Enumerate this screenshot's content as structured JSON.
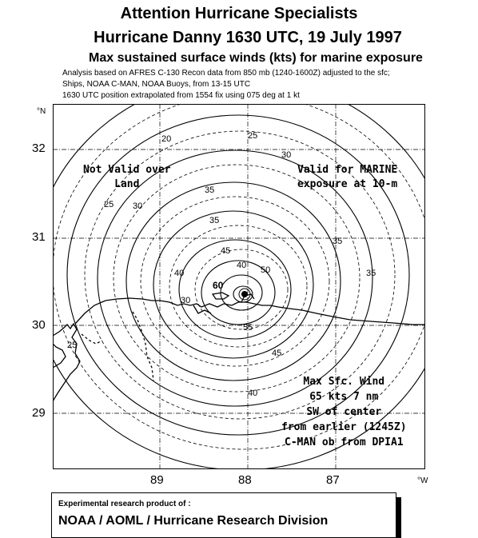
{
  "header": {
    "title": "Attention Hurricane Specialists",
    "storm_time": "Hurricane Danny  1630 UTC, 19 July 1997",
    "subtitle": "Max sustained surface winds (kts) for marine exposure",
    "note1": "Analysis based on  AFRES C-130 Recon data from 850  mb (1240-1600Z) adjusted to the sfc;",
    "note2": "Ships, NOAA C-MAN, NOAA Buoys, from  13-15  UTC",
    "note3": "1630 UTC position extrapolated from  1554 fix using 075 deg at 1 kt"
  },
  "axes": {
    "north_unit": "°N",
    "west_unit": "°W",
    "lat_ticks": [
      "32",
      "31",
      "30",
      "29"
    ],
    "lon_ticks": [
      "89",
      "88",
      "87"
    ]
  },
  "map_labels": {
    "not_valid_line1": "Not Valid over",
    "not_valid_line2": "Land",
    "valid_line1": "Valid for MARINE",
    "valid_line2": "exposure at 10-m"
  },
  "contours": {
    "labels": [
      "20",
      "25",
      "25",
      "30",
      "30",
      "35",
      "35",
      "40",
      "45",
      "50",
      "55",
      "60",
      "25",
      "30",
      "35",
      "40",
      "45",
      "35",
      "40"
    ]
  },
  "max_wind": {
    "line1": "Max Sfc. Wind",
    "line2": "65 kts 7 nm",
    "line3": "SW of center",
    "line4": "from earlier (1245Z)",
    "line5": "C-MAN ob from DPIA1"
  },
  "footer": {
    "line1": "Experimental research product of :",
    "line2": "NOAA / AOML / Hurricane Research Division"
  }
}
